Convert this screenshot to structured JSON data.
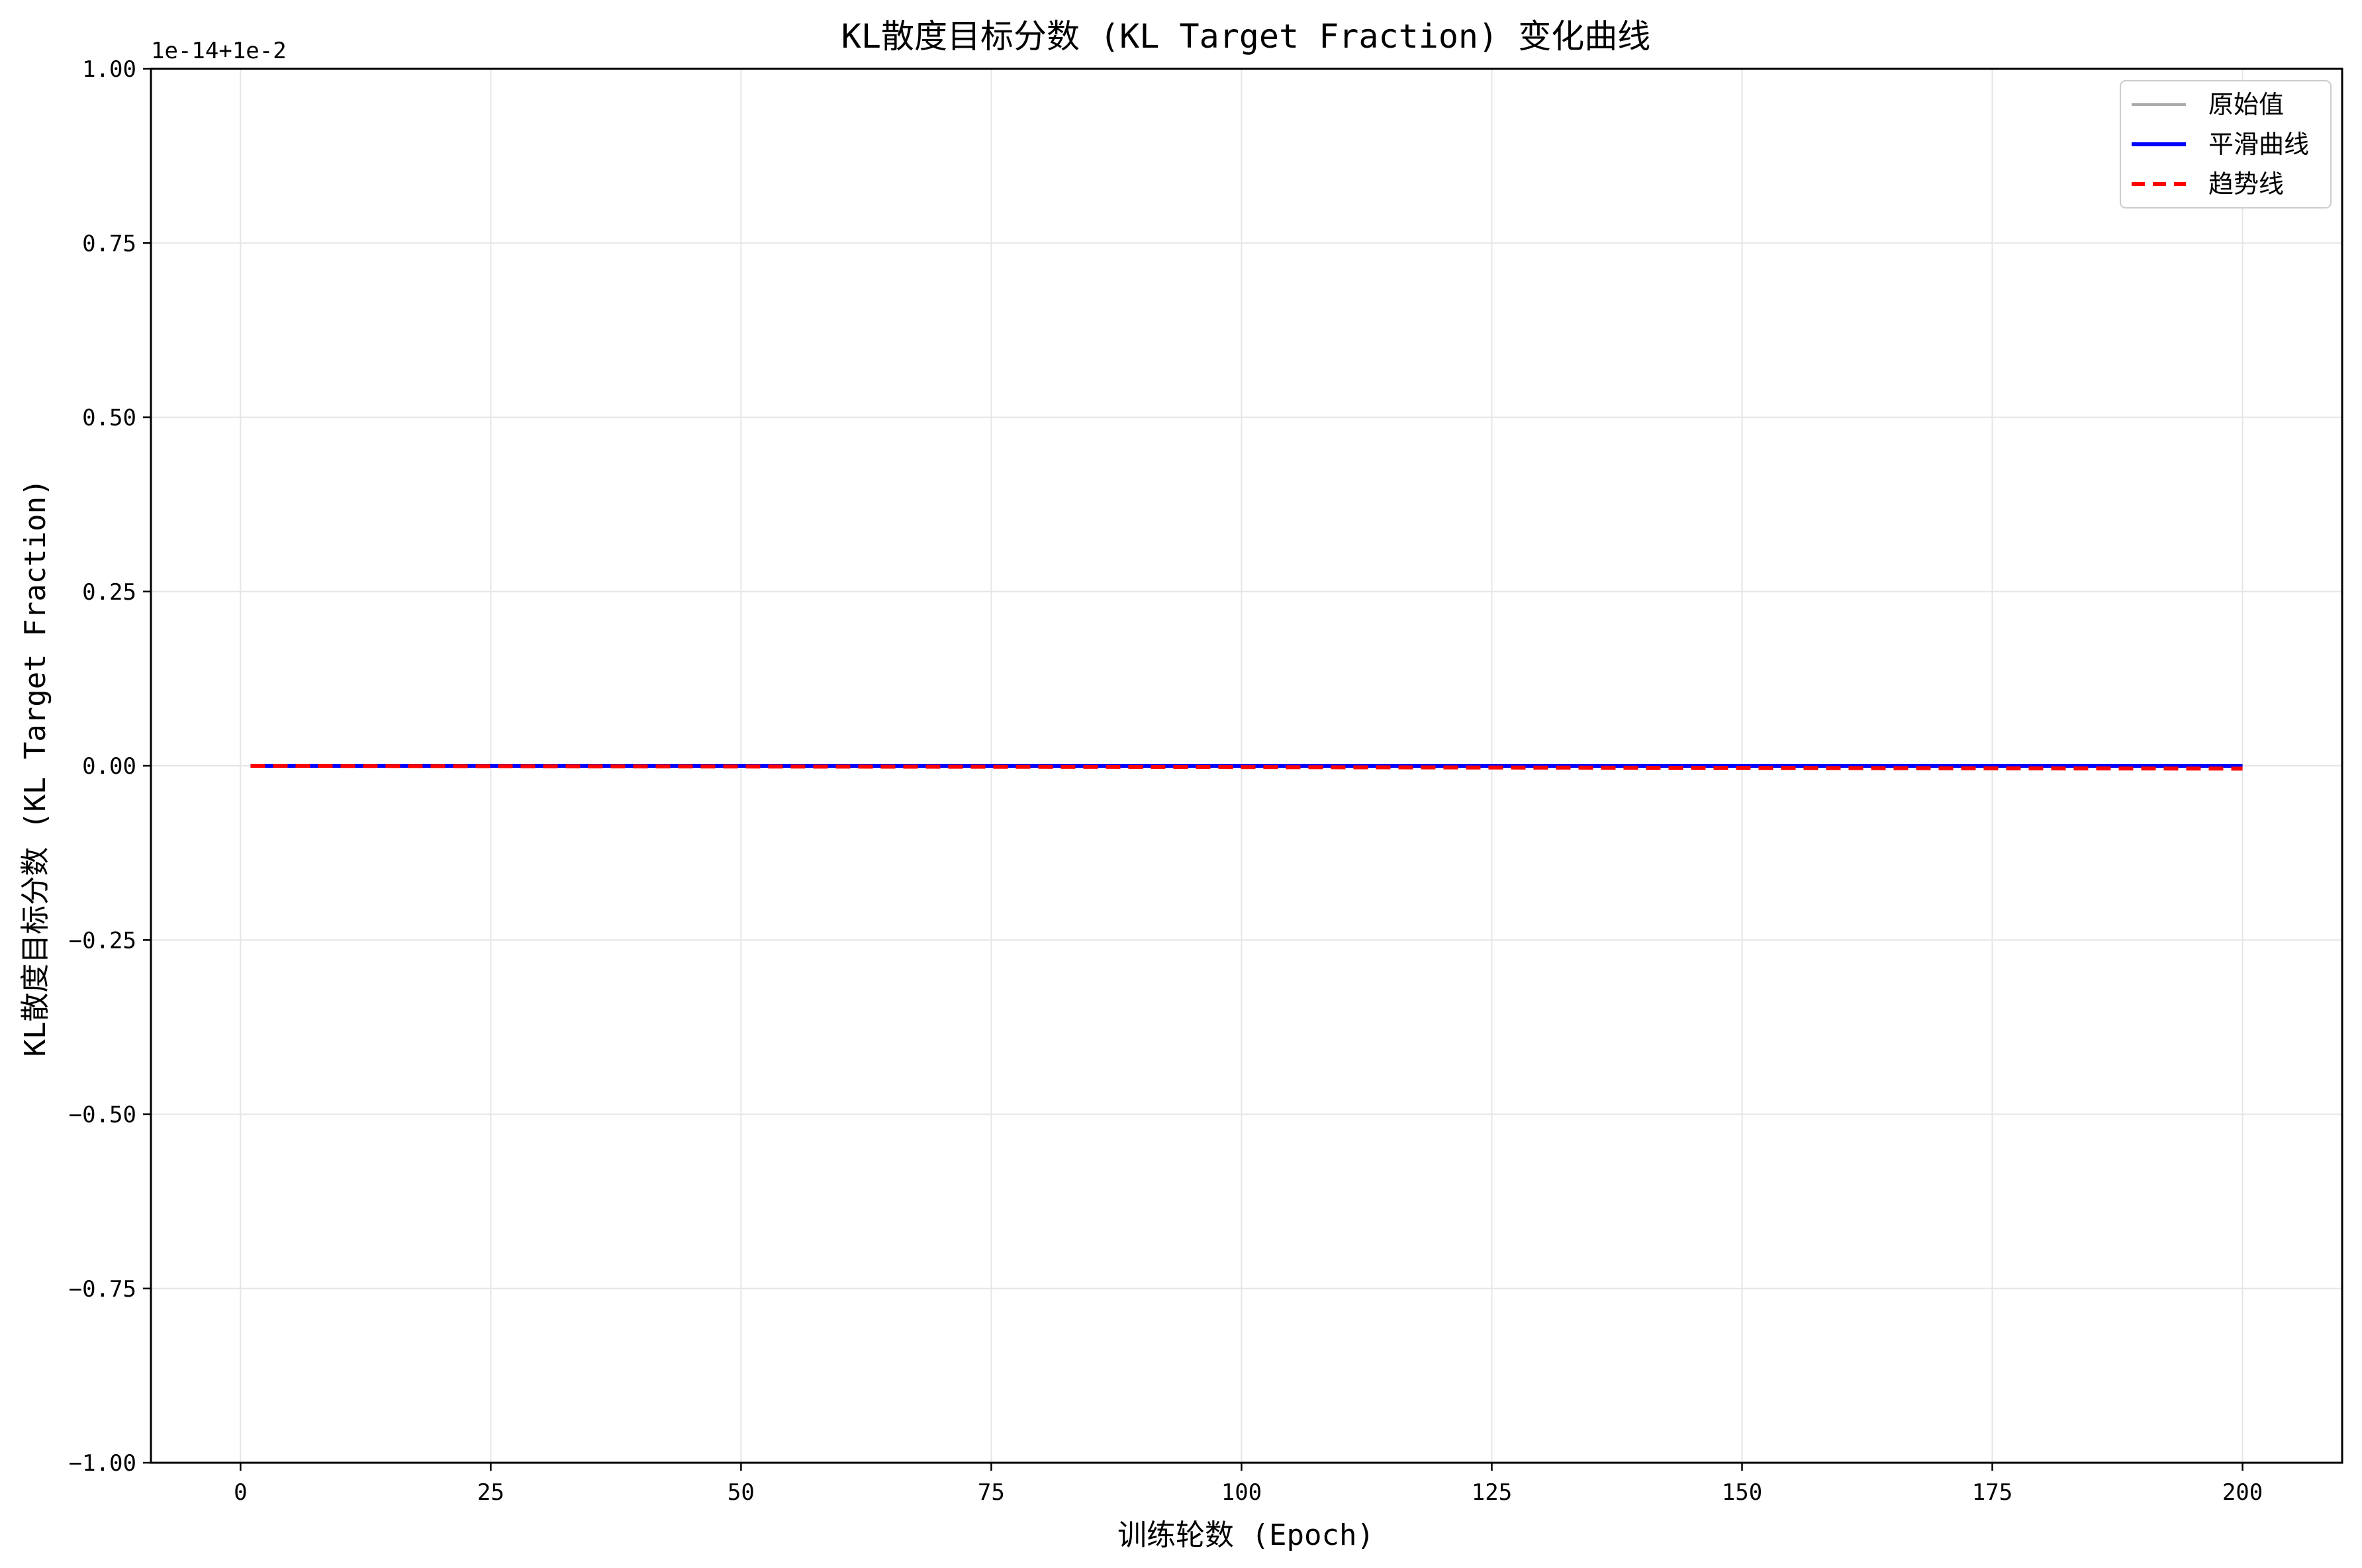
{
  "chart_data": {
    "type": "line",
    "title": "KL散度目标分数 (KL Target Fraction) 变化曲线",
    "xlabel": "训练轮数 (Epoch)",
    "ylabel": "KL散度目标分数 (KL Target Fraction)",
    "offset_text": "1e-14+1e-2",
    "xlim": [
      -8.95,
      209.95
    ],
    "ylim": [
      -1.0,
      1.0
    ],
    "xticks": [
      0,
      25,
      50,
      75,
      100,
      125,
      150,
      175,
      200
    ],
    "xtick_labels": [
      "0",
      "25",
      "50",
      "75",
      "100",
      "125",
      "150",
      "175",
      "200"
    ],
    "yticks": [
      -1.0,
      -0.75,
      -0.5,
      -0.25,
      0.0,
      0.25,
      0.5,
      0.75,
      1.0
    ],
    "ytick_labels": [
      "−1.00",
      "−0.75",
      "−0.50",
      "−0.25",
      "0.00",
      "0.25",
      "0.50",
      "0.75",
      "1.00"
    ],
    "grid": true,
    "legend_position": "top-right",
    "series": [
      {
        "name": "原始值",
        "style": "solid",
        "color": "#aaaaaa",
        "x": [
          1,
          200
        ],
        "y": [
          0.0,
          0.0
        ]
      },
      {
        "name": "平滑曲线",
        "style": "solid",
        "color": "#0000ff",
        "x": [
          1,
          200
        ],
        "y": [
          0.0,
          0.0
        ]
      },
      {
        "name": "趋势线",
        "style": "dashed",
        "color": "#ff0000",
        "x": [
          1,
          200
        ],
        "y": [
          0.0,
          -0.004
        ]
      }
    ]
  }
}
